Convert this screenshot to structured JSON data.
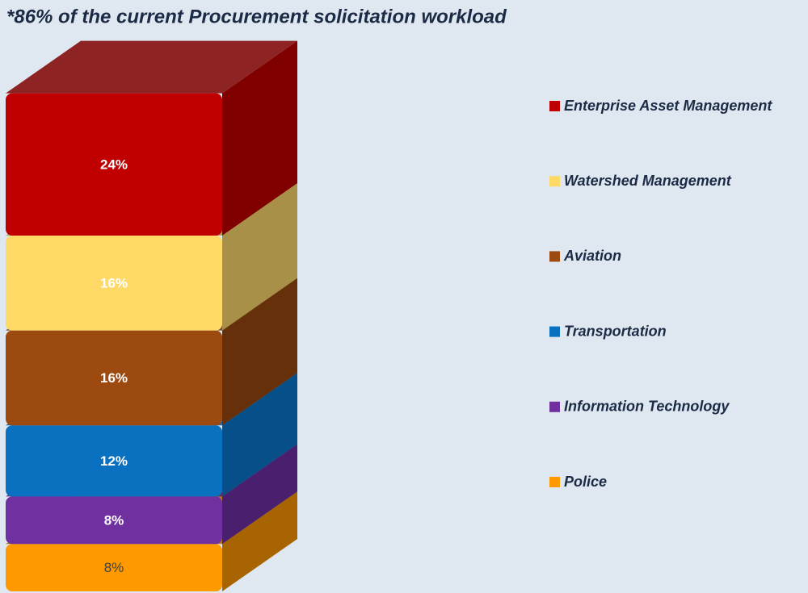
{
  "chart_data": {
    "type": "stacked-bar-3d",
    "title": "*86% of the current Procurement solicitation workload",
    "series": [
      {
        "name": "Enterprise Asset Management",
        "color": "#c00000",
        "side_color": "#800000",
        "label_color": "#ffffff",
        "values": [
          24
        ],
        "value_labels": [
          "24%"
        ]
      },
      {
        "name": "Watershed Management",
        "color": "#ffd966",
        "side_color": "#a89048",
        "label_color": "#ffffff",
        "values": [
          16
        ],
        "value_labels": [
          "16%"
        ]
      },
      {
        "name": "Aviation",
        "color": "#9c4a10",
        "side_color": "#66300a",
        "label_color": "#ffffff",
        "values": [
          16
        ],
        "value_labels": [
          "16%"
        ]
      },
      {
        "name": "Transportation",
        "color": "#0a70c0",
        "side_color": "#064f88",
        "label_color": "#ffffff",
        "values": [
          12
        ],
        "value_labels": [
          "12%"
        ]
      },
      {
        "name": "Information Technology",
        "color": "#7030a0",
        "side_color": "#4a1f6e",
        "label_color": "#ffffff",
        "values": [
          8
        ],
        "value_labels": [
          "8%"
        ]
      },
      {
        "name": "Police",
        "color": "#ff9900",
        "side_color": "#a86400",
        "label_color": "#404040",
        "values": [
          8
        ],
        "value_labels": [
          "8%"
        ]
      }
    ],
    "legend": "right"
  }
}
